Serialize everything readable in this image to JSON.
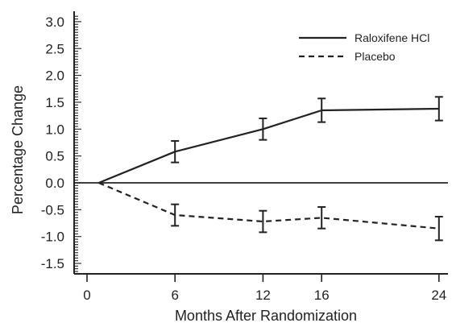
{
  "chart_data": {
    "type": "line",
    "xlabel": "Months After Randomization",
    "ylabel": "Percentage Change",
    "x_ticks": [
      "0",
      "6",
      "12",
      "16",
      "24"
    ],
    "x_positions": [
      0,
      6,
      12,
      16,
      24
    ],
    "y_ticks": [
      "3.0",
      "2.5",
      "2.0",
      "1.5",
      "1.0",
      "0.5",
      "0.0",
      "-0.5",
      "-1.0",
      "-1.5"
    ],
    "ylim": [
      -1.75,
      3.2
    ],
    "xlim": [
      -1.5,
      25
    ],
    "grid": false,
    "legend_position": "top-right",
    "series": [
      {
        "name": "Raloxifene HCl",
        "line_style": "solid",
        "x": [
          0.8,
          6,
          12,
          16,
          24
        ],
        "y": [
          0.0,
          0.58,
          1.0,
          1.35,
          1.38
        ],
        "error": [
          0,
          0.2,
          0.2,
          0.22,
          0.22
        ]
      },
      {
        "name": "Placebo",
        "line_style": "dashed",
        "x": [
          0.8,
          6,
          12,
          16,
          24
        ],
        "y": [
          0.0,
          -0.6,
          -0.72,
          -0.65,
          -0.85
        ],
        "error": [
          0,
          0.2,
          0.2,
          0.2,
          0.22
        ]
      }
    ],
    "reference_line_y": 0.0,
    "color": "#222222"
  }
}
